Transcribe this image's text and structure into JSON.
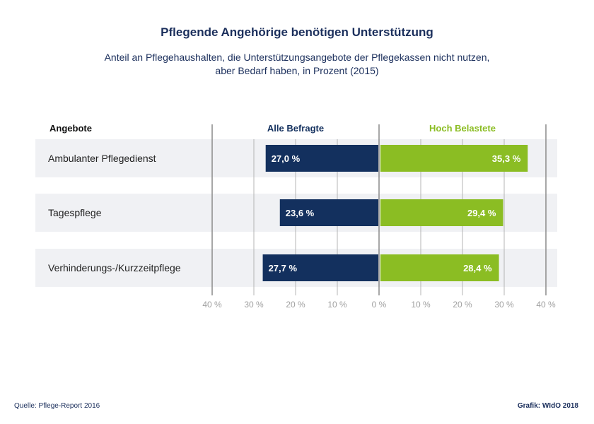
{
  "title": "Pflegende Angehörige benötigen Unterstützung",
  "subtitle_line1": "Anteil an Pflegehaushalten, die Unterstützungsangebote der Pflegekassen nicht nutzen,",
  "subtitle_line2": "aber Bedarf haben, in Prozent (2015)",
  "footer": {
    "source": "Quelle: Pflege-Report 2016",
    "credit": "Grafik: WIdO 2018"
  },
  "colors": {
    "navy": "#13305e",
    "green": "#8bbd23",
    "row_bg": "#f0f1f4",
    "grid": "#9a9a9a",
    "tick": "#a0a0a0"
  },
  "chart_data": {
    "type": "bar",
    "orientation": "horizontal-diverging",
    "category_header": "Angebote",
    "categories": [
      "Ambulanter Pflegedienst",
      "Tagespflege",
      "Verhinderungs-/Kurzzeitpflege"
    ],
    "series": [
      {
        "name": "Alle Befragte",
        "direction": "left",
        "color": "#13305e",
        "values": [
          27.0,
          23.6,
          27.7
        ],
        "labels": [
          "27,0 %",
          "23,6 %",
          "27,7 %"
        ]
      },
      {
        "name": "Hoch Belastete",
        "direction": "right",
        "color": "#8bbd23",
        "values": [
          35.3,
          29.4,
          28.4
        ],
        "labels": [
          "35,3 %",
          "29,4 %",
          "28,4 %"
        ]
      }
    ],
    "xlim": [
      -40,
      40
    ],
    "ticks": [
      -40,
      -30,
      -20,
      -10,
      0,
      10,
      20,
      30,
      40
    ],
    "tick_labels": [
      "40 %",
      "30 %",
      "20 %",
      "10 %",
      "0 %",
      "10 %",
      "20 %",
      "30 %",
      "40 %"
    ],
    "grid": true
  }
}
